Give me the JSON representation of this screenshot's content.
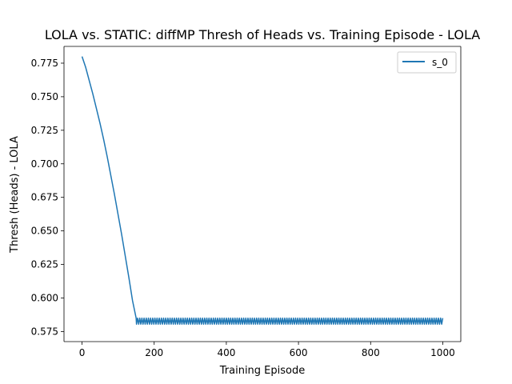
{
  "chart_data": {
    "type": "line",
    "title": "LOLA vs. STATIC: diffMP Thresh of Heads vs. Training Episode - LOLA",
    "xlabel": "Training Episode",
    "ylabel": "Thresh (Heads) - LOLA",
    "xlim": [
      -50,
      1050
    ],
    "ylim": [
      0.5675,
      0.7875
    ],
    "xticks": [
      0,
      200,
      400,
      600,
      800,
      1000
    ],
    "xtick_labels": [
      "0",
      "200",
      "400",
      "600",
      "800",
      "1000"
    ],
    "yticks": [
      0.575,
      0.6,
      0.625,
      0.65,
      0.675,
      0.7,
      0.725,
      0.75,
      0.775
    ],
    "ytick_labels": [
      "0.575",
      "0.600",
      "0.625",
      "0.650",
      "0.675",
      "0.700",
      "0.725",
      "0.750",
      "0.775"
    ],
    "grid": false,
    "legend_position": "top-right",
    "series": [
      {
        "name": "s_0",
        "color": "#1f77b4",
        "points": [
          [
            0,
            0.78
          ],
          [
            10,
            0.772
          ],
          [
            20,
            0.762
          ],
          [
            30,
            0.752
          ],
          [
            40,
            0.741
          ],
          [
            50,
            0.73
          ],
          [
            60,
            0.718
          ],
          [
            70,
            0.705
          ],
          [
            80,
            0.691
          ],
          [
            90,
            0.677
          ],
          [
            100,
            0.662
          ],
          [
            110,
            0.647
          ],
          [
            120,
            0.631
          ],
          [
            130,
            0.615
          ],
          [
            140,
            0.598
          ],
          [
            150,
            0.585
          ]
        ],
        "oscillation": {
          "x_start": 150,
          "x_end": 1000,
          "high": 0.585,
          "low": 0.5805
        }
      }
    ]
  }
}
